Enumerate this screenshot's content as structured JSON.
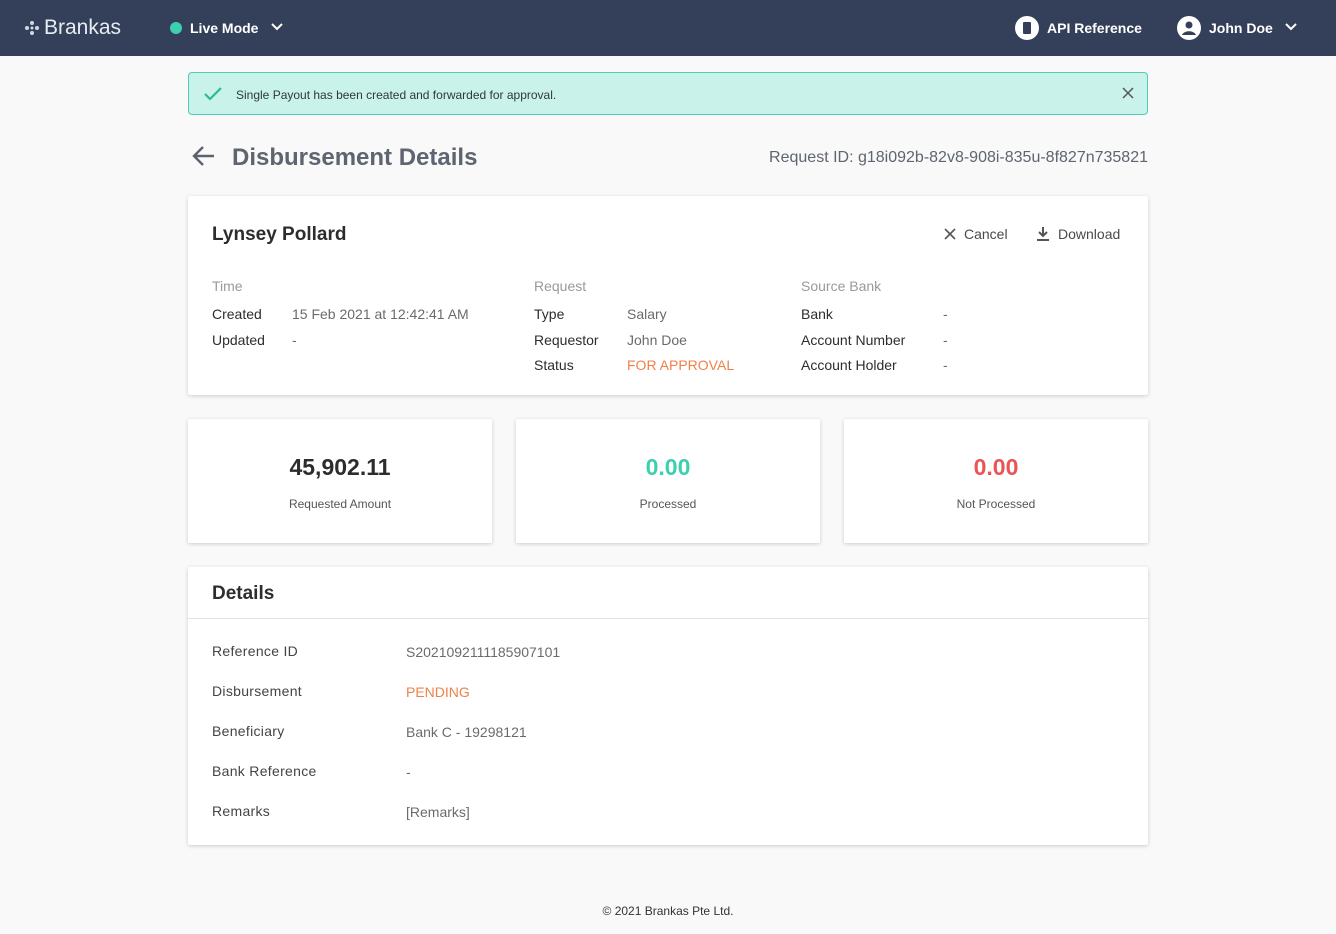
{
  "navbar": {
    "brand": "Brankas",
    "mode": "Live Mode",
    "api_reference": "API Reference",
    "user": "John Doe"
  },
  "alert": {
    "message": "Single Payout has been created and forwarded for approval."
  },
  "header": {
    "title": "Disbursement Details",
    "request_id": "Request ID: g18i092b-82v8-908i-835u-8f827n735821"
  },
  "summary": {
    "name": "Lynsey Pollard",
    "actions": [
      "Cancel",
      "Download"
    ],
    "columns": [
      {
        "heading": "Time",
        "rows": [
          [
            "Created",
            "15 Feb 2021 at 12:42:41 AM"
          ],
          [
            "Updated",
            "-"
          ]
        ]
      },
      {
        "heading": "Request",
        "rows": [
          [
            "Type",
            "Salary"
          ],
          [
            "Requestor",
            "John Doe"
          ],
          [
            "Status",
            "FOR APPROVAL"
          ]
        ]
      },
      {
        "heading": "Source Bank",
        "rows": [
          [
            "Bank",
            "-"
          ],
          [
            "Account Number",
            "-"
          ],
          [
            "Account Holder",
            "-"
          ]
        ]
      }
    ]
  },
  "stats": [
    {
      "amount": "45,902.11",
      "label": "Requested Amount"
    },
    {
      "amount": "0.00",
      "label": "Processed"
    },
    {
      "amount": "0.00",
      "label": "Not Processed"
    }
  ],
  "details": {
    "title": "Details",
    "rows": [
      [
        "Reference ID",
        "S2021092111185907101"
      ],
      [
        "Disbursement",
        "PENDING"
      ],
      [
        "Beneficiary",
        "Bank C - 19298121"
      ],
      [
        "Bank Reference",
        "-"
      ],
      [
        "Remarks",
        "[Remarks]"
      ]
    ]
  },
  "footer": {
    "copyright": "© 2021 Brankas Pte Ltd."
  }
}
